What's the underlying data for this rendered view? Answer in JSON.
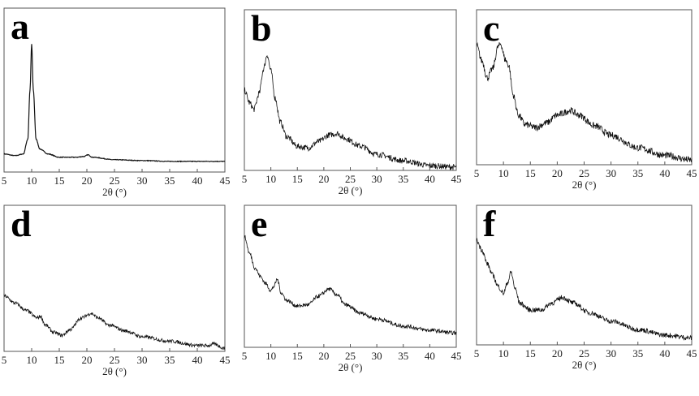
{
  "chart_data": [
    {
      "type": "line",
      "panel": "a",
      "xlabel": "2θ (°)",
      "ylabel": "",
      "xlim": [
        5,
        45
      ],
      "ylim": [
        0,
        1
      ],
      "xticks": [
        5,
        10,
        15,
        20,
        25,
        30,
        35,
        40,
        45
      ],
      "noise": 0.002,
      "x": [
        5,
        7,
        8.5,
        9.3,
        9.7,
        10,
        10.3,
        10.8,
        11.5,
        13,
        15,
        18,
        19.5,
        20.2,
        21,
        25,
        30,
        35,
        40,
        45
      ],
      "y": [
        0.11,
        0.1,
        0.11,
        0.2,
        0.5,
        0.78,
        0.5,
        0.2,
        0.14,
        0.11,
        0.09,
        0.09,
        0.095,
        0.105,
        0.09,
        0.075,
        0.07,
        0.065,
        0.065,
        0.065
      ]
    },
    {
      "type": "line",
      "panel": "b",
      "xlabel": "2θ (°)",
      "ylabel": "",
      "xlim": [
        5,
        45
      ],
      "ylim": [
        0,
        1
      ],
      "xticks": [
        5,
        10,
        15,
        20,
        25,
        30,
        35,
        40,
        45
      ],
      "noise": 0.018,
      "x": [
        5,
        6,
        6.8,
        7.8,
        8.6,
        9.3,
        10,
        10.8,
        11.8,
        13,
        15,
        17,
        19,
        21,
        22.5,
        24,
        27,
        30,
        35,
        40,
        45
      ],
      "y": [
        0.5,
        0.42,
        0.38,
        0.48,
        0.63,
        0.72,
        0.62,
        0.45,
        0.3,
        0.21,
        0.15,
        0.14,
        0.18,
        0.22,
        0.23,
        0.2,
        0.15,
        0.1,
        0.06,
        0.03,
        0.02
      ]
    },
    {
      "type": "line",
      "panel": "c",
      "xlabel": "2θ (°)",
      "ylabel": "",
      "xlim": [
        5,
        45
      ],
      "ylim": [
        0,
        1
      ],
      "xticks": [
        5,
        10,
        15,
        20,
        25,
        30,
        35,
        40,
        45
      ],
      "noise": 0.022,
      "x": [
        5,
        6,
        7,
        8,
        9,
        9.5,
        10.3,
        11,
        11.8,
        12.8,
        14,
        16,
        18,
        20,
        22.5,
        24,
        27,
        30,
        35,
        40,
        45
      ],
      "y": [
        0.77,
        0.67,
        0.56,
        0.62,
        0.76,
        0.78,
        0.68,
        0.64,
        0.45,
        0.32,
        0.26,
        0.24,
        0.27,
        0.32,
        0.35,
        0.32,
        0.25,
        0.19,
        0.11,
        0.06,
        0.03
      ]
    },
    {
      "type": "line",
      "panel": "d",
      "xlabel": "2θ (°)",
      "ylabel": "",
      "xlim": [
        5,
        45
      ],
      "ylim": [
        0,
        1
      ],
      "xticks": [
        5,
        10,
        15,
        20,
        25,
        30,
        35,
        40,
        45
      ],
      "noise": 0.012,
      "x": [
        5,
        7,
        9,
        11,
        11.6,
        12.5,
        14,
        15.5,
        17,
        19,
        20.8,
        22,
        24,
        27,
        30,
        35,
        40,
        42,
        43,
        45
      ],
      "y": [
        0.38,
        0.33,
        0.28,
        0.23,
        0.24,
        0.18,
        0.13,
        0.11,
        0.15,
        0.23,
        0.26,
        0.23,
        0.18,
        0.14,
        0.1,
        0.07,
        0.04,
        0.04,
        0.05,
        0.02
      ]
    },
    {
      "type": "line",
      "panel": "e",
      "xlabel": "2θ (°)",
      "ylabel": "",
      "xlim": [
        5,
        45
      ],
      "ylim": [
        0,
        1
      ],
      "xticks": [
        5,
        10,
        15,
        20,
        25,
        30,
        35,
        40,
        45
      ],
      "noise": 0.014,
      "x": [
        5,
        6,
        7,
        8,
        9,
        10,
        10.6,
        11.2,
        12,
        13,
        15,
        17,
        19,
        21,
        22.5,
        24,
        27,
        30,
        35,
        40,
        45
      ],
      "y": [
        0.78,
        0.66,
        0.56,
        0.5,
        0.45,
        0.4,
        0.43,
        0.48,
        0.38,
        0.33,
        0.29,
        0.3,
        0.36,
        0.41,
        0.37,
        0.3,
        0.24,
        0.2,
        0.15,
        0.12,
        0.1
      ]
    },
    {
      "type": "line",
      "panel": "f",
      "xlabel": "2θ (°)",
      "ylabel": "",
      "xlim": [
        5,
        45
      ],
      "ylim": [
        0,
        1
      ],
      "xticks": [
        5,
        10,
        15,
        20,
        25,
        30,
        35,
        40,
        45
      ],
      "noise": 0.018,
      "x": [
        5,
        6,
        7,
        8,
        9,
        10,
        10.8,
        11.4,
        12.2,
        13,
        15,
        17,
        19,
        21,
        23,
        26,
        30,
        35,
        40,
        45
      ],
      "y": [
        0.75,
        0.68,
        0.58,
        0.5,
        0.42,
        0.37,
        0.45,
        0.52,
        0.4,
        0.3,
        0.25,
        0.25,
        0.3,
        0.34,
        0.3,
        0.23,
        0.17,
        0.11,
        0.07,
        0.05
      ]
    }
  ],
  "panel_letters": [
    "a",
    "b",
    "c",
    "d",
    "e",
    "f"
  ]
}
